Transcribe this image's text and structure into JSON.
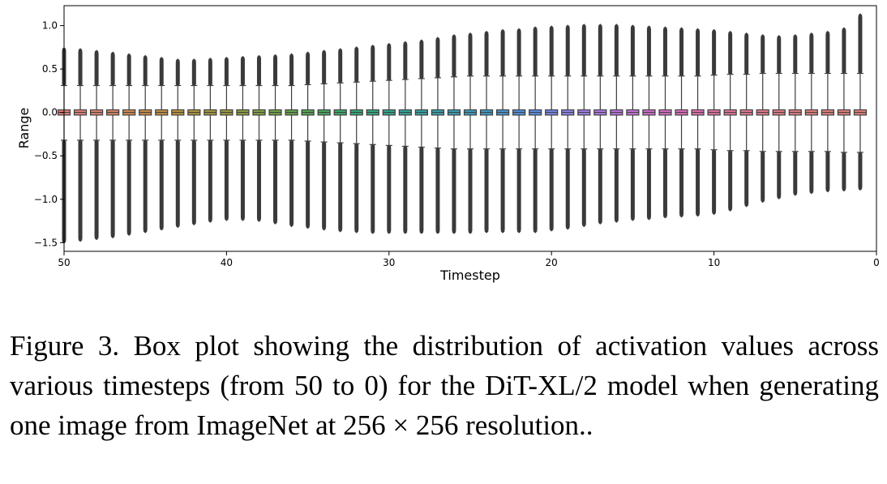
{
  "chart_data": {
    "type": "box",
    "xlabel": "Timestep",
    "ylabel": "Range",
    "x_ticks": [
      50,
      40,
      30,
      20,
      10,
      0
    ],
    "y_ticks": [
      1.0,
      0.5,
      0.0,
      -0.5,
      -1.0,
      -1.5
    ],
    "y_tick_labels": [
      "1.0",
      "0.5",
      "0.0",
      "−0.5",
      "−1.0",
      "−1.5"
    ],
    "xlim": [
      50,
      0
    ],
    "ylim": [
      -1.6,
      1.23
    ],
    "legend": "none",
    "grid": false,
    "timesteps": [
      50,
      49,
      48,
      47,
      46,
      45,
      44,
      43,
      42,
      41,
      40,
      39,
      38,
      37,
      36,
      35,
      34,
      33,
      32,
      31,
      30,
      29,
      28,
      27,
      26,
      25,
      24,
      23,
      22,
      21,
      20,
      19,
      18,
      17,
      16,
      15,
      14,
      13,
      12,
      11,
      10,
      9,
      8,
      7,
      6,
      5,
      4,
      3,
      2,
      1
    ],
    "box_q1": -0.03,
    "box_q3": 0.03,
    "median": 0.0,
    "whisker_low": [
      -0.32,
      -0.32,
      -0.32,
      -0.32,
      -0.32,
      -0.32,
      -0.32,
      -0.32,
      -0.32,
      -0.32,
      -0.32,
      -0.32,
      -0.32,
      -0.32,
      -0.32,
      -0.33,
      -0.34,
      -0.35,
      -0.36,
      -0.37,
      -0.38,
      -0.39,
      -0.4,
      -0.41,
      -0.42,
      -0.42,
      -0.42,
      -0.42,
      -0.42,
      -0.42,
      -0.42,
      -0.42,
      -0.42,
      -0.42,
      -0.42,
      -0.42,
      -0.42,
      -0.42,
      -0.42,
      -0.42,
      -0.43,
      -0.44,
      -0.44,
      -0.45,
      -0.45,
      -0.45,
      -0.45,
      -0.45,
      -0.46,
      -0.46
    ],
    "whisker_high": [
      0.31,
      0.31,
      0.31,
      0.31,
      0.31,
      0.31,
      0.31,
      0.31,
      0.31,
      0.31,
      0.31,
      0.31,
      0.31,
      0.31,
      0.31,
      0.32,
      0.33,
      0.34,
      0.35,
      0.36,
      0.37,
      0.38,
      0.39,
      0.4,
      0.41,
      0.42,
      0.42,
      0.42,
      0.42,
      0.42,
      0.42,
      0.42,
      0.42,
      0.42,
      0.42,
      0.42,
      0.42,
      0.42,
      0.42,
      0.42,
      0.43,
      0.44,
      0.44,
      0.45,
      0.45,
      0.45,
      0.45,
      0.45,
      0.45,
      0.45
    ],
    "outlier_max": [
      0.71,
      0.7,
      0.68,
      0.66,
      0.64,
      0.62,
      0.6,
      0.58,
      0.58,
      0.59,
      0.6,
      0.61,
      0.62,
      0.63,
      0.64,
      0.66,
      0.68,
      0.7,
      0.72,
      0.74,
      0.76,
      0.78,
      0.8,
      0.83,
      0.86,
      0.88,
      0.9,
      0.92,
      0.93,
      0.95,
      0.96,
      0.97,
      0.98,
      0.98,
      0.98,
      0.97,
      0.96,
      0.95,
      0.94,
      0.93,
      0.92,
      0.9,
      0.88,
      0.86,
      0.85,
      0.86,
      0.88,
      0.9,
      0.94,
      1.1
    ],
    "outlier_min": [
      -1.47,
      -1.45,
      -1.43,
      -1.41,
      -1.38,
      -1.35,
      -1.32,
      -1.29,
      -1.26,
      -1.23,
      -1.21,
      -1.21,
      -1.22,
      -1.25,
      -1.28,
      -1.3,
      -1.32,
      -1.34,
      -1.35,
      -1.36,
      -1.36,
      -1.36,
      -1.36,
      -1.36,
      -1.36,
      -1.36,
      -1.35,
      -1.35,
      -1.35,
      -1.35,
      -1.33,
      -1.31,
      -1.28,
      -1.25,
      -1.23,
      -1.21,
      -1.2,
      -1.18,
      -1.17,
      -1.16,
      -1.14,
      -1.1,
      -1.05,
      -1.0,
      -0.96,
      -0.92,
      -0.9,
      -0.88,
      -0.87,
      -0.86
    ],
    "colors": [
      "#e8817d",
      "#e6837a",
      "#e28575",
      "#dd8a63",
      "#d78d57",
      "#d0904d",
      "#c89446",
      "#bf9840",
      "#b59b3e",
      "#aa9e3e",
      "#9ea13e",
      "#91a440",
      "#83a743",
      "#75a946",
      "#65ab4b",
      "#54ad54",
      "#45ae5f",
      "#3aae6c",
      "#35ad7a",
      "#34ac87",
      "#35ab92",
      "#36a99d",
      "#38a7a7",
      "#3aa5b1",
      "#3ca3ba",
      "#3ea0c3",
      "#419dcc",
      "#4799d6",
      "#5295e0",
      "#6191e8",
      "#7a8bee",
      "#9186f0",
      "#a580ef",
      "#b37bed",
      "#c076e8",
      "#cc74df",
      "#d670d5",
      "#de6fcb",
      "#e36fc0",
      "#e672b5",
      "#e875aa",
      "#e977a0",
      "#ea7a97",
      "#ea7c8f",
      "#ea7e89",
      "#e98084",
      "#e98282",
      "#e8827f",
      "#e8817d",
      "#e8817d"
    ]
  },
  "caption": {
    "text": "Figure 3.  Box plot showing the distribution of activation values across various timesteps (from 50 to 0) for the DiT-XL/2 model when generating one image from ImageNet at 256 × 256 resolution.."
  }
}
